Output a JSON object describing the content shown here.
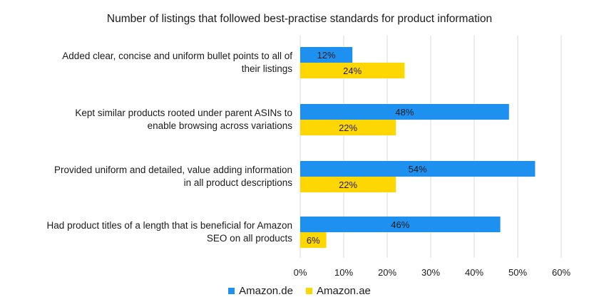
{
  "colors": {
    "amazon_de": "#1e90ef",
    "amazon_ae": "#ffd700",
    "grid": "#d9d9d9"
  },
  "chart_data": {
    "type": "bar",
    "orientation": "horizontal",
    "title": "Number of listings that followed best-practise standards for product information",
    "categories": [
      "Added clear, concise and uniform bullet points to all of\ntheir listings",
      "Kept similar products rooted under parent ASINs to\nenable browsing across variations",
      "Provided uniform and detailed, value adding information\nin all product descriptions",
      "Had product titles of a length that is beneficial for Amazon\nSEO on all products"
    ],
    "series": [
      {
        "name": "Amazon.de",
        "values": [
          12,
          48,
          54,
          46
        ],
        "labels": [
          "12%",
          "48%",
          "54%",
          "46%"
        ]
      },
      {
        "name": "Amazon.ae",
        "values": [
          24,
          22,
          22,
          6
        ],
        "labels": [
          "24%",
          "22%",
          "22%",
          "6%"
        ]
      }
    ],
    "xlim": [
      0,
      60
    ],
    "ticks": [
      "0%",
      "10%",
      "20%",
      "30%",
      "40%",
      "50%",
      "60%"
    ],
    "grid": true,
    "legend_position": "bottom"
  }
}
